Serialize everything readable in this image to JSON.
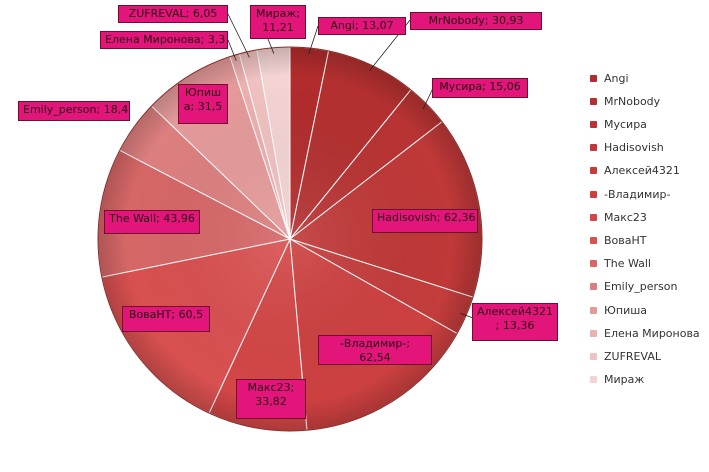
{
  "chart_data": {
    "type": "pie",
    "slices": [
      {
        "name": "Angi",
        "value": 13.07,
        "value_label": "13,07",
        "color": "#b22c2c"
      },
      {
        "name": "MrNobody",
        "value": 30.93,
        "value_label": "30,93",
        "color": "#b43030"
      },
      {
        "name": "Мусира",
        "value": 15.06,
        "value_label": "15,06",
        "color": "#b93333"
      },
      {
        "name": "Hadisovish",
        "value": 62.36,
        "value_label": "62,36",
        "color": "#c03838"
      },
      {
        "name": "Алексей4321",
        "value": 13.36,
        "value_label": "13,36",
        "color": "#c43c3c"
      },
      {
        "name": "-Владимир-",
        "value": 62.54,
        "value_label": "62,54",
        "color": "#cd4040"
      },
      {
        "name": "Макс23",
        "value": 33.82,
        "value_label": "33,82",
        "color": "#d34646"
      },
      {
        "name": "ВоваНТ",
        "value": 60.5,
        "value_label": "60,5",
        "color": "#d95050"
      },
      {
        "name": "The Wall",
        "value": 43.96,
        "value_label": "43,96",
        "color": "#d66767"
      },
      {
        "name": "Emily_person",
        "value": 18.4,
        "value_label": "18,4",
        "color": "#dd7f7f"
      },
      {
        "name": "Юпиша",
        "value": 31.5,
        "value_label": "31,5",
        "color": "#e59a9a"
      },
      {
        "name": "Елена Миронова",
        "value": 3.3,
        "value_label": "3,3",
        "color": "#ecb0b0"
      },
      {
        "name": "ZUFREVAL",
        "value": 6.05,
        "value_label": "6,05",
        "color": "#f0c1c1"
      },
      {
        "name": "Мираж",
        "value": 11.21,
        "value_label": "11,21",
        "color": "#f4d3d3"
      }
    ],
    "start_angle": "12 o'clock",
    "direction": "clockwise",
    "legend": "right",
    "label_background": "#e3147a",
    "label_border": "#6e0f2c",
    "pie_edge": "#8a2a2a"
  }
}
